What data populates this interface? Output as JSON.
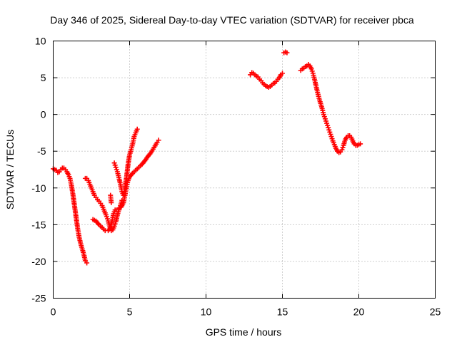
{
  "chart_data": {
    "type": "scatter",
    "title": "Day 346 of 2025, Sidereal Day-to-day VTEC variation (SDTVAR) for receiver pbca",
    "xlabel": "GPS time / hours",
    "ylabel": "SDTVAR / TECUs",
    "xlim": [
      0,
      25
    ],
    "ylim": [
      -25,
      10
    ],
    "x_ticks": [
      0,
      5,
      10,
      15,
      20,
      25
    ],
    "y_ticks": [
      -25,
      -20,
      -15,
      -10,
      -5,
      0,
      5,
      10
    ],
    "x_tick_labels": [
      "0",
      "5",
      "10",
      "15",
      "20",
      "25"
    ],
    "y_tick_labels": [
      "-25",
      "-20",
      "-15",
      "-10",
      "-5",
      "0",
      "5",
      "10"
    ],
    "grid": true,
    "marker": "plus",
    "color": "#ff0000",
    "series": [
      {
        "segments": [
          [
            [
              0.0,
              -7.4
            ],
            [
              0.1,
              -7.5
            ],
            [
              0.2,
              -7.6
            ],
            [
              0.3,
              -7.9
            ],
            [
              0.4,
              -7.8
            ],
            [
              0.5,
              -7.5
            ],
            [
              0.6,
              -7.3
            ],
            [
              0.7,
              -7.3
            ],
            [
              0.8,
              -7.5
            ],
            [
              0.9,
              -7.8
            ],
            [
              1.0,
              -8.2
            ],
            [
              1.1,
              -8.7
            ],
            [
              1.2,
              -9.7
            ],
            [
              1.3,
              -11.0
            ],
            [
              1.4,
              -12.5
            ],
            [
              1.5,
              -14.0
            ],
            [
              1.6,
              -15.5
            ],
            [
              1.7,
              -16.7
            ],
            [
              1.8,
              -17.6
            ],
            [
              1.9,
              -18.3
            ],
            [
              2.0,
              -19.0
            ],
            [
              2.1,
              -19.9
            ],
            [
              2.2,
              -20.2
            ]
          ],
          [
            [
              2.1,
              -8.7
            ],
            [
              2.2,
              -8.7
            ],
            [
              2.3,
              -9.0
            ],
            [
              2.4,
              -9.5
            ],
            [
              2.5,
              -10.0
            ],
            [
              2.6,
              -10.5
            ],
            [
              2.7,
              -11.0
            ],
            [
              2.8,
              -11.3
            ],
            [
              2.9,
              -11.6
            ],
            [
              3.0,
              -11.8
            ],
            [
              3.1,
              -12.1
            ],
            [
              3.2,
              -12.4
            ],
            [
              3.3,
              -12.9
            ],
            [
              3.4,
              -13.4
            ],
            [
              3.5,
              -13.9
            ],
            [
              3.6,
              -14.5
            ],
            [
              3.7,
              -15.3
            ],
            [
              3.8,
              -15.8
            ],
            [
              3.9,
              -15.7
            ],
            [
              4.0,
              -15.2
            ],
            [
              4.1,
              -14.6
            ],
            [
              4.2,
              -13.7
            ],
            [
              4.3,
              -13.0
            ],
            [
              4.4,
              -12.4
            ],
            [
              4.5,
              -11.7
            ]
          ],
          [
            [
              2.6,
              -14.3
            ],
            [
              2.8,
              -14.5
            ],
            [
              3.0,
              -15.0
            ],
            [
              3.2,
              -15.4
            ],
            [
              3.4,
              -15.8
            ],
            [
              3.6,
              -15.8
            ],
            [
              3.75,
              -15.4
            ],
            [
              3.85,
              -14.5
            ],
            [
              3.95,
              -13.5
            ],
            [
              4.05,
              -13.0
            ],
            [
              4.15,
              -13.0
            ],
            [
              4.3,
              -12.8
            ],
            [
              4.45,
              -12.6
            ],
            [
              4.6,
              -12.0
            ],
            [
              4.7,
              -11.0
            ],
            [
              4.8,
              -9.8
            ],
            [
              4.9,
              -9.0
            ],
            [
              5.0,
              -8.5
            ],
            [
              5.2,
              -8.0
            ],
            [
              5.4,
              -7.6
            ],
            [
              5.6,
              -7.2
            ],
            [
              5.8,
              -6.8
            ],
            [
              6.0,
              -6.3
            ],
            [
              6.2,
              -5.7
            ],
            [
              6.4,
              -5.2
            ],
            [
              6.6,
              -4.5
            ],
            [
              6.8,
              -3.8
            ],
            [
              6.9,
              -3.5
            ]
          ],
          [
            [
              4.0,
              -6.6
            ],
            [
              4.1,
              -7.2
            ],
            [
              4.2,
              -7.8
            ],
            [
              4.3,
              -8.6
            ],
            [
              4.4,
              -9.5
            ],
            [
              4.5,
              -10.5
            ],
            [
              4.6,
              -11.0
            ],
            [
              4.7,
              -10.0
            ],
            [
              4.8,
              -8.5
            ],
            [
              4.9,
              -6.8
            ],
            [
              5.0,
              -5.5
            ],
            [
              5.1,
              -4.8
            ],
            [
              5.2,
              -4.0
            ],
            [
              5.3,
              -3.0
            ],
            [
              5.4,
              -2.5
            ],
            [
              5.5,
              -2.0
            ]
          ],
          [
            [
              3.75,
              -11.0
            ],
            [
              3.8,
              -12.0
            ]
          ],
          [
            [
              12.9,
              5.4
            ],
            [
              13.0,
              5.7
            ],
            [
              13.1,
              5.6
            ],
            [
              13.2,
              5.4
            ],
            [
              13.3,
              5.2
            ],
            [
              13.4,
              5.1
            ],
            [
              13.5,
              4.8
            ],
            [
              13.6,
              4.6
            ],
            [
              13.7,
              4.3
            ],
            [
              13.8,
              4.1
            ],
            [
              13.9,
              3.9
            ],
            [
              14.0,
              3.8
            ],
            [
              14.1,
              3.7
            ],
            [
              14.2,
              3.8
            ],
            [
              14.3,
              4.0
            ],
            [
              14.4,
              4.2
            ],
            [
              14.5,
              4.3
            ],
            [
              14.6,
              4.5
            ],
            [
              14.7,
              4.8
            ],
            [
              14.8,
              5.0
            ],
            [
              14.9,
              5.4
            ],
            [
              15.0,
              5.6
            ]
          ],
          [
            [
              15.1,
              8.4
            ],
            [
              15.2,
              8.5
            ],
            [
              15.3,
              8.4
            ]
          ],
          [
            [
              16.2,
              6.0
            ],
            [
              16.3,
              6.2
            ],
            [
              16.4,
              6.3
            ],
            [
              16.5,
              6.5
            ],
            [
              16.6,
              6.6
            ],
            [
              16.7,
              6.8
            ],
            [
              16.8,
              6.6
            ],
            [
              16.9,
              6.2
            ],
            [
              17.0,
              5.6
            ],
            [
              17.1,
              4.8
            ],
            [
              17.2,
              3.9
            ],
            [
              17.3,
              3.0
            ],
            [
              17.4,
              2.2
            ],
            [
              17.5,
              1.5
            ],
            [
              17.6,
              0.8
            ],
            [
              17.7,
              0.0
            ],
            [
              17.8,
              -0.6
            ],
            [
              17.9,
              -1.2
            ],
            [
              18.0,
              -1.8
            ],
            [
              18.1,
              -2.4
            ],
            [
              18.2,
              -3.0
            ],
            [
              18.3,
              -3.6
            ],
            [
              18.4,
              -4.1
            ],
            [
              18.5,
              -4.6
            ],
            [
              18.6,
              -5.0
            ],
            [
              18.7,
              -5.2
            ],
            [
              18.8,
              -5.1
            ],
            [
              18.9,
              -4.8
            ],
            [
              19.0,
              -4.2
            ],
            [
              19.1,
              -3.5
            ],
            [
              19.2,
              -3.1
            ],
            [
              19.3,
              -2.9
            ],
            [
              19.4,
              -2.9
            ],
            [
              19.5,
              -3.1
            ],
            [
              19.6,
              -3.6
            ],
            [
              19.7,
              -4.0
            ],
            [
              19.8,
              -4.2
            ],
            [
              19.9,
              -4.2
            ],
            [
              20.0,
              -4.1
            ],
            [
              20.1,
              -4.0
            ]
          ]
        ]
      }
    ]
  }
}
